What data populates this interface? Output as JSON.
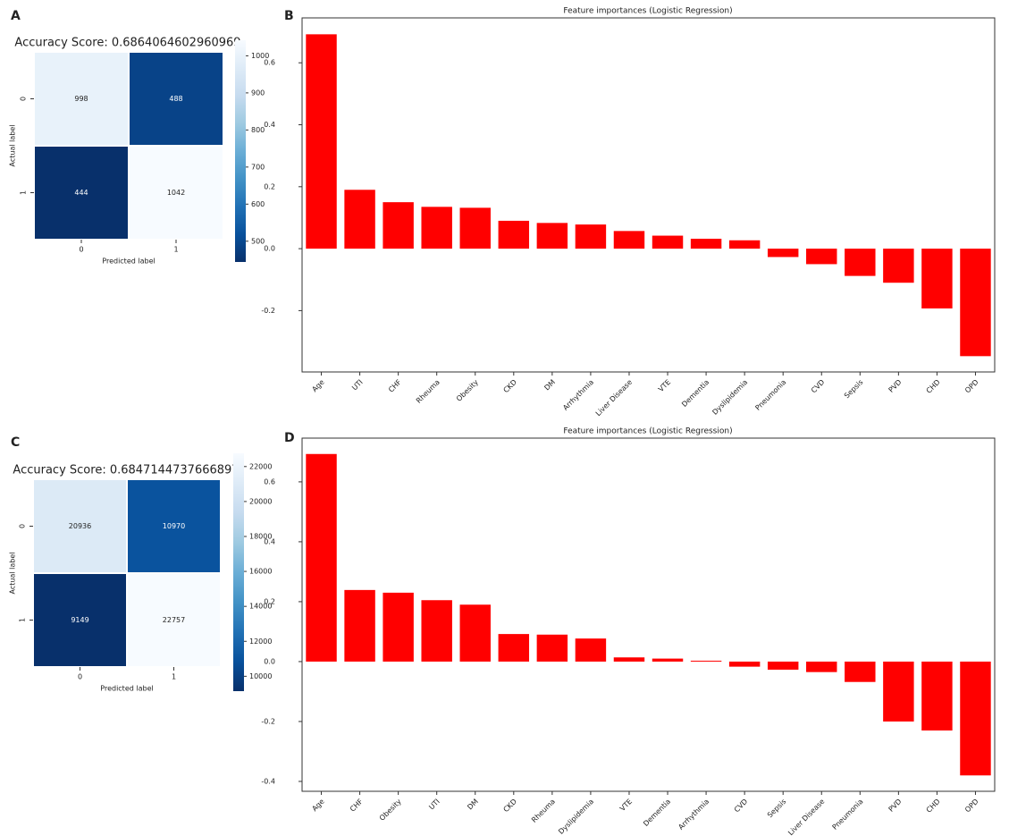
{
  "chart_data": [
    {
      "type": "heatmap",
      "panel_label": "A",
      "title": "Accuracy Score: 0.6864064602960969",
      "x_categories": [
        "0",
        "1"
      ],
      "y_categories": [
        "0",
        "1"
      ],
      "values": [
        [
          998,
          488
        ],
        [
          444,
          1042
        ]
      ],
      "xlabel": "Predicted label",
      "ylabel": "Actual label",
      "cmap": "Blues_r",
      "clim": [
        444,
        1042
      ],
      "colorbar_ticks": [
        500,
        600,
        700,
        800,
        900,
        1000
      ]
    },
    {
      "type": "bar",
      "panel_label": "B",
      "title": "Feature importances (Logistic Regression)",
      "categories": [
        "Age",
        "UTI",
        "CHF",
        "Rheuma",
        "Obesity",
        "CKD",
        "DM",
        "Arrhythmia",
        "Liver Disease",
        "VTE",
        "Dementia",
        "Dyslipidemia",
        "Pneumonia",
        "CVD",
        "Sepsis",
        "PVD",
        "CHD",
        "OPD"
      ],
      "values": [
        0.692,
        0.19,
        0.15,
        0.135,
        0.132,
        0.09,
        0.083,
        0.078,
        0.057,
        0.042,
        0.032,
        0.027,
        -0.027,
        -0.05,
        -0.088,
        -0.11,
        -0.193,
        -0.347
      ],
      "color": "#ff0000",
      "ylim": [
        -0.398,
        0.745
      ],
      "yticks": [
        -0.2,
        {
          "value": 0,
          "label": "0.0"
        },
        0.2,
        0.4,
        0.6
      ]
    },
    {
      "type": "heatmap",
      "panel_label": "C",
      "title": "Accuracy Score: 0.6847144737666897",
      "x_categories": [
        "0",
        "1"
      ],
      "y_categories": [
        "0",
        "1"
      ],
      "values": [
        [
          20936,
          10970
        ],
        [
          9149,
          22757
        ]
      ],
      "xlabel": "Predicted label",
      "ylabel": "Actual label",
      "cmap": "Blues_r",
      "clim": [
        9149,
        22757
      ],
      "colorbar_ticks": [
        10000,
        12000,
        14000,
        16000,
        18000,
        20000,
        22000
      ]
    },
    {
      "type": "bar",
      "panel_label": "D",
      "title": "Feature importances (Logistic Regression)",
      "categories": [
        "Age",
        "CHF",
        "Obesity",
        "UTI",
        "DM",
        "CKD",
        "Rheuma",
        "Dyslipidemia",
        "VTE",
        "Dementia",
        "Arrhythmia",
        "CVD",
        "Sepsis",
        "Liver Disease",
        "Pneumonia",
        "PVD",
        "CHD",
        "OPD"
      ],
      "values": [
        0.693,
        0.239,
        0.23,
        0.205,
        0.19,
        0.092,
        0.09,
        0.077,
        0.014,
        0.01,
        0.003,
        -0.017,
        -0.027,
        -0.035,
        -0.068,
        -0.2,
        -0.23,
        -0.38
      ],
      "color": "#ff0000",
      "ylim": [
        -0.433,
        0.746
      ],
      "yticks": [
        -0.4,
        -0.2,
        {
          "value": 0,
          "label": "0.0"
        },
        0.2,
        0.4,
        0.6
      ]
    }
  ]
}
